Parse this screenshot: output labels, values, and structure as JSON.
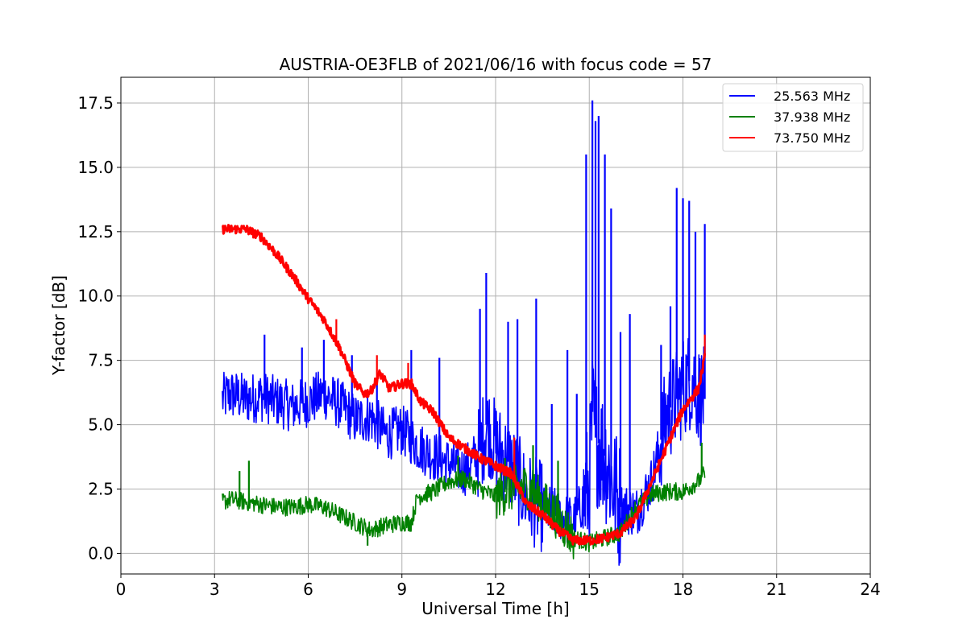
{
  "chart_data": {
    "type": "line",
    "title": "AUSTRIA-OE3FLB of 2021/06/16 with focus code = 57",
    "xlabel": "Universal Time [h]",
    "ylabel": "Y-factor [dB]",
    "xlim": [
      0,
      24
    ],
    "ylim": [
      -0.8,
      18.5
    ],
    "xticks": [
      0,
      3,
      6,
      9,
      12,
      15,
      18,
      21,
      24
    ],
    "xtick_labels": [
      "0",
      "3",
      "6",
      "9",
      "12",
      "15",
      "18",
      "21",
      "24"
    ],
    "yticks": [
      0,
      2.5,
      5,
      7.5,
      10,
      12.5,
      15,
      17.5
    ],
    "ytick_labels": [
      "0.0",
      "2.5",
      "5.0",
      "7.5",
      "10.0",
      "12.5",
      "15.0",
      "17.5"
    ],
    "grid": true,
    "legend_position": "top-right",
    "series": [
      {
        "name": "25.563 MHz",
        "color": "#0000ff",
        "x": [
          3.25,
          3.5,
          4.0,
          4.5,
          5.0,
          5.5,
          6.0,
          6.5,
          7.0,
          7.5,
          8.0,
          8.5,
          9.0,
          9.5,
          10.0,
          10.5,
          11.0,
          11.5,
          11.7,
          12.0,
          12.5,
          13.0,
          13.5,
          14.0,
          14.5,
          15.0,
          15.1,
          15.2,
          15.5,
          15.8,
          16.0,
          16.5,
          17.0,
          17.5,
          17.8,
          18.0,
          18.3,
          18.5,
          18.7
        ],
        "y": [
          6.0,
          6.2,
          6.0,
          6.1,
          5.9,
          5.7,
          5.9,
          6.2,
          5.8,
          5.2,
          5.3,
          4.6,
          4.8,
          4.2,
          3.8,
          3.5,
          3.2,
          4.0,
          5.0,
          4.2,
          3.4,
          2.2,
          1.8,
          1.5,
          1.2,
          2.6,
          5.5,
          4.5,
          3.8,
          2.5,
          1.8,
          1.6,
          2.8,
          5.5,
          6.0,
          6.5,
          6.8,
          6.2,
          6.0
        ],
        "spike_x": [
          4.6,
          5.8,
          6.5,
          7.4,
          8.2,
          9.3,
          10.2,
          11.5,
          11.7,
          12.4,
          12.7,
          13.3,
          13.8,
          14.3,
          14.6,
          14.9,
          15.1,
          15.2,
          15.3,
          15.5,
          15.7,
          16.0,
          16.3,
          17.3,
          17.6,
          17.8,
          18.0,
          18.2,
          18.4,
          18.7
        ],
        "spike_y": [
          8.5,
          8.0,
          8.3,
          7.7,
          6.8,
          7.9,
          7.6,
          9.5,
          10.9,
          9.0,
          9.1,
          9.9,
          5.8,
          7.9,
          6.2,
          15.5,
          17.6,
          16.8,
          17.0,
          15.5,
          13.4,
          8.6,
          9.3,
          8.1,
          9.6,
          14.2,
          13.8,
          13.7,
          12.5,
          12.8
        ]
      },
      {
        "name": "37.938 MHz",
        "color": "#008000",
        "x": [
          3.25,
          3.5,
          4.0,
          4.5,
          5.0,
          5.5,
          6.0,
          6.5,
          7.0,
          7.5,
          8.0,
          8.5,
          9.0,
          9.3,
          9.5,
          10.0,
          10.5,
          11.0,
          11.5,
          12.0,
          12.5,
          13.0,
          13.5,
          14.0,
          14.5,
          15.0,
          15.5,
          16.0,
          16.5,
          17.0,
          17.5,
          18.0,
          18.5,
          18.7
        ],
        "y": [
          2.0,
          2.1,
          2.0,
          1.9,
          1.8,
          1.8,
          1.9,
          1.8,
          1.5,
          1.2,
          0.9,
          1.1,
          1.2,
          1.2,
          2.2,
          2.4,
          2.8,
          2.9,
          2.5,
          2.2,
          2.5,
          2.6,
          2.0,
          1.4,
          0.6,
          0.4,
          0.6,
          0.8,
          1.8,
          2.3,
          2.4,
          2.4,
          2.8,
          3.1
        ],
        "spike_x": [
          3.8,
          4.1,
          7.9,
          10.8,
          12.3,
          13.2,
          14.0,
          18.6
        ],
        "spike_y": [
          3.2,
          3.6,
          0.3,
          3.8,
          3.7,
          4.2,
          3.6,
          4.3
        ]
      },
      {
        "name": "73.750 MHz",
        "color": "#ff0000",
        "x": [
          3.25,
          3.5,
          4.0,
          4.5,
          5.0,
          5.5,
          6.0,
          6.5,
          7.0,
          7.5,
          7.8,
          8.0,
          8.3,
          8.6,
          9.0,
          9.3,
          9.6,
          10.0,
          10.5,
          11.0,
          11.5,
          12.0,
          12.5,
          12.8,
          13.0,
          13.5,
          14.0,
          14.5,
          15.0,
          15.5,
          16.0,
          16.5,
          17.0,
          17.5,
          18.0,
          18.5,
          18.7
        ],
        "y": [
          12.6,
          12.6,
          12.6,
          12.3,
          11.6,
          10.8,
          9.9,
          9.1,
          8.0,
          6.6,
          6.2,
          6.3,
          7.0,
          6.4,
          6.6,
          6.6,
          5.9,
          5.5,
          4.5,
          4.1,
          3.7,
          3.4,
          3.1,
          2.4,
          1.9,
          1.5,
          0.9,
          0.5,
          0.5,
          0.6,
          0.8,
          1.4,
          2.8,
          4.2,
          5.6,
          6.4,
          7.6
        ],
        "spike_x": [
          6.9,
          8.2,
          9.2,
          12.6,
          18.7
        ],
        "spike_y": [
          9.1,
          7.7,
          7.4,
          4.5,
          8.5
        ]
      }
    ]
  }
}
